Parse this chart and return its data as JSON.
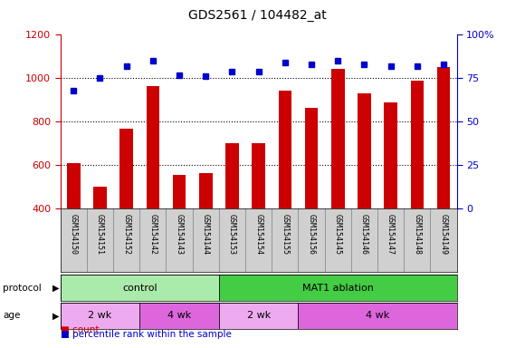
{
  "title": "GDS2561 / 104482_at",
  "samples": [
    "GSM154150",
    "GSM154151",
    "GSM154152",
    "GSM154142",
    "GSM154143",
    "GSM154144",
    "GSM154153",
    "GSM154154",
    "GSM154155",
    "GSM154156",
    "GSM154145",
    "GSM154146",
    "GSM154147",
    "GSM154148",
    "GSM154149"
  ],
  "counts": [
    610,
    500,
    770,
    965,
    555,
    565,
    700,
    700,
    945,
    865,
    1045,
    930,
    890,
    990,
    1050
  ],
  "percentiles": [
    68,
    75,
    82,
    85,
    77,
    76,
    79,
    79,
    84,
    83,
    85,
    83,
    82,
    82,
    83
  ],
  "ylim_left": [
    400,
    1200
  ],
  "ylim_right": [
    0,
    100
  ],
  "yticks_left": [
    400,
    600,
    800,
    1000,
    1200
  ],
  "yticks_right": [
    0,
    25,
    50,
    75,
    100
  ],
  "bar_color": "#cc0000",
  "dot_color": "#0000cc",
  "protocol_groups": [
    {
      "label": "control",
      "start": 0,
      "end": 6,
      "color": "#aaeaaa"
    },
    {
      "label": "MAT1 ablation",
      "start": 6,
      "end": 15,
      "color": "#44cc44"
    }
  ],
  "age_groups": [
    {
      "label": "2 wk",
      "start": 0,
      "end": 3,
      "color": "#eeaaee"
    },
    {
      "label": "4 wk",
      "start": 3,
      "end": 6,
      "color": "#dd66dd"
    },
    {
      "label": "2 wk",
      "start": 6,
      "end": 9,
      "color": "#eeaaee"
    },
    {
      "label": "4 wk",
      "start": 9,
      "end": 15,
      "color": "#dd66dd"
    }
  ],
  "tick_color_left": "#cc0000",
  "tick_color_right": "#0000cc",
  "bg_color": "#ffffff",
  "label_bg": "#d0d0d0"
}
